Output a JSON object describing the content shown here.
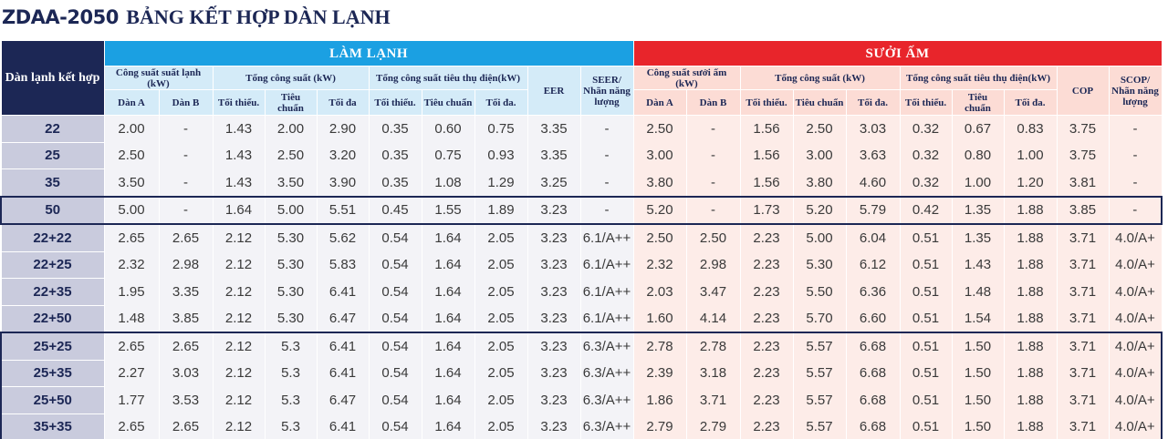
{
  "title": {
    "model": "ZDAA-2050",
    "text": "BẢNG KẾT HỢP DÀN LẠNH"
  },
  "table": {
    "corner": "Dàn lạnh kết hợp",
    "groups": [
      {
        "name": "LÀM LẠNH",
        "subgroups": [
          {
            "name": "Công suất suất lạnh (kW)",
            "columns": [
              "Dàn A",
              "Dàn B"
            ]
          },
          {
            "name": "Tổng công suất (kW)",
            "columns": [
              "Tối thiểu.",
              "Tiêu chuẩn",
              "Tối đa"
            ]
          },
          {
            "name": "Tổng công suất tiêu thụ điện(kW)",
            "columns": [
              "Tối thiểu.",
              "Tiêu chuẩn",
              "Tối đa."
            ]
          },
          {
            "name": "EER",
            "columns": []
          },
          {
            "name": "SEER/ Nhãn năng lượng",
            "columns": []
          }
        ]
      },
      {
        "name": "SƯỞI ẤM",
        "subgroups": [
          {
            "name": "Công suất sưởi ấm (kW)",
            "columns": [
              "Dàn A",
              "Dàn B"
            ]
          },
          {
            "name": "Tổng công suất (kW)",
            "columns": [
              "Tối thiểu.",
              "Tiêu chuẩn",
              "Tối đa."
            ]
          },
          {
            "name": "Tổng công suất tiêu thụ điện(kW)",
            "columns": [
              "Tối thiểu.",
              "Tiêu chuẩn",
              "Tối đa."
            ]
          },
          {
            "name": "COP",
            "columns": []
          },
          {
            "name": "SCOP/ Nhãn năng lượng",
            "columns": []
          }
        ]
      }
    ],
    "rows": [
      [
        "22",
        "2.00",
        "-",
        "1.43",
        "2.00",
        "2.90",
        "0.35",
        "0.60",
        "0.75",
        "3.35",
        "-",
        "2.50",
        "-",
        "1.56",
        "2.50",
        "3.03",
        "0.32",
        "0.67",
        "0.83",
        "3.75",
        "-"
      ],
      [
        "25",
        "2.50",
        "-",
        "1.43",
        "2.50",
        "3.20",
        "0.35",
        "0.75",
        "0.93",
        "3.35",
        "-",
        "3.00",
        "-",
        "1.56",
        "3.00",
        "3.63",
        "0.32",
        "0.80",
        "1.00",
        "3.75",
        "-"
      ],
      [
        "35",
        "3.50",
        "-",
        "1.43",
        "3.50",
        "3.90",
        "0.35",
        "1.08",
        "1.29",
        "3.25",
        "-",
        "3.80",
        "-",
        "1.56",
        "3.80",
        "4.60",
        "0.32",
        "1.00",
        "1.20",
        "3.81",
        "-"
      ],
      [
        "50",
        "5.00",
        "-",
        "1.64",
        "5.00",
        "5.51",
        "0.45",
        "1.55",
        "1.89",
        "3.23",
        "-",
        "5.20",
        "-",
        "1.73",
        "5.20",
        "5.79",
        "0.42",
        "1.35",
        "1.88",
        "3.85",
        "-"
      ],
      [
        "22+22",
        "2.65",
        "2.65",
        "2.12",
        "5.30",
        "5.62",
        "0.54",
        "1.64",
        "2.05",
        "3.23",
        "6.1/A++",
        "2.50",
        "2.50",
        "2.23",
        "5.00",
        "6.04",
        "0.51",
        "1.35",
        "1.88",
        "3.71",
        "4.0/A+"
      ],
      [
        "22+25",
        "2.32",
        "2.98",
        "2.12",
        "5.30",
        "5.83",
        "0.54",
        "1.64",
        "2.05",
        "3.23",
        "6.1/A++",
        "2.32",
        "2.98",
        "2.23",
        "5.30",
        "6.12",
        "0.51",
        "1.43",
        "1.88",
        "3.71",
        "4.0/A+"
      ],
      [
        "22+35",
        "1.95",
        "3.35",
        "2.12",
        "5.30",
        "6.41",
        "0.54",
        "1.64",
        "2.05",
        "3.23",
        "6.1/A++",
        "2.03",
        "3.47",
        "2.23",
        "5.50",
        "6.36",
        "0.51",
        "1.48",
        "1.88",
        "3.71",
        "4.0/A+"
      ],
      [
        "22+50",
        "1.48",
        "3.85",
        "2.12",
        "5.30",
        "6.47",
        "0.54",
        "1.64",
        "2.05",
        "3.23",
        "6.1/A++",
        "1.60",
        "4.14",
        "2.23",
        "5.70",
        "6.60",
        "0.51",
        "1.54",
        "1.88",
        "3.71",
        "4.0/A+"
      ],
      [
        "25+25",
        "2.65",
        "2.65",
        "2.12",
        "5.3",
        "6.41",
        "0.54",
        "1.64",
        "2.05",
        "3.23",
        "6.3/A++",
        "2.78",
        "2.78",
        "2.23",
        "5.57",
        "6.68",
        "0.51",
        "1.50",
        "1.88",
        "3.71",
        "4.0/A+"
      ],
      [
        "25+35",
        "2.27",
        "3.03",
        "2.12",
        "5.3",
        "6.41",
        "0.54",
        "1.64",
        "2.05",
        "3.23",
        "6.3/A++",
        "2.39",
        "3.18",
        "2.23",
        "5.57",
        "6.68",
        "0.51",
        "1.50",
        "1.88",
        "3.71",
        "4.0/A+"
      ],
      [
        "25+50",
        "1.77",
        "3.53",
        "2.12",
        "5.3",
        "6.47",
        "0.54",
        "1.64",
        "2.05",
        "3.23",
        "6.3/A++",
        "1.86",
        "3.71",
        "2.23",
        "5.57",
        "6.68",
        "0.51",
        "1.50",
        "1.88",
        "3.71",
        "4.0/A+"
      ],
      [
        "35+35",
        "2.65",
        "2.65",
        "2.12",
        "5.3",
        "6.41",
        "0.54",
        "1.64",
        "2.05",
        "3.23",
        "6.3/A++",
        "2.79",
        "2.79",
        "2.23",
        "5.57",
        "6.68",
        "0.51",
        "1.50",
        "1.88",
        "3.71",
        "4.0/A+"
      ]
    ]
  }
}
